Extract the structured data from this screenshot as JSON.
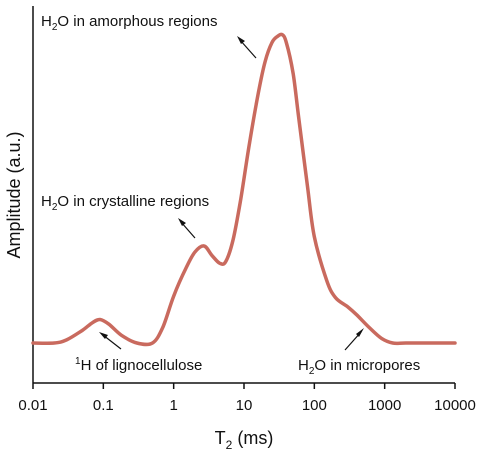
{
  "chart_data": {
    "type": "line",
    "title": "",
    "xlabel": "T2 (ms)",
    "xlabel_main": "T",
    "xlabel_sub": "2",
    "xlabel_tail": " (ms)",
    "ylabel": "Amplitude (a.u.)",
    "xscale": "log",
    "xlim": [
      0.01,
      10000
    ],
    "ylim": [
      0,
      1
    ],
    "grid": false,
    "legend": "none",
    "x_ticks": [
      0.01,
      0.1,
      1,
      10,
      100,
      1000,
      10000
    ],
    "x_tick_labels": [
      "0.01",
      "0.1",
      "1",
      "10",
      "100",
      "1000",
      "10000"
    ],
    "series": [
      {
        "color": "#c96a5e",
        "x": [
          0.01,
          0.02,
          0.03,
          0.05,
          0.07,
          0.09,
          0.12,
          0.18,
          0.3,
          0.5,
          0.7,
          1.0,
          1.5,
          2.0,
          2.7,
          3.5,
          4.5,
          5.5,
          7,
          9,
          12,
          16,
          20,
          25,
          30,
          35,
          40,
          50,
          60,
          80,
          100,
          150,
          200,
          300,
          400,
          600,
          900,
          1300,
          2000,
          5000,
          10000
        ],
        "y": [
          0.0,
          0.0,
          0.01,
          0.04,
          0.065,
          0.075,
          0.06,
          0.025,
          0.0,
          0.0,
          0.05,
          0.15,
          0.24,
          0.29,
          0.31,
          0.28,
          0.255,
          0.26,
          0.33,
          0.46,
          0.64,
          0.8,
          0.9,
          0.96,
          0.98,
          0.985,
          0.96,
          0.86,
          0.72,
          0.5,
          0.34,
          0.2,
          0.145,
          0.115,
          0.09,
          0.05,
          0.015,
          0.0,
          0.0,
          0.0,
          0.0
        ]
      }
    ],
    "annotations": [
      {
        "id": "amorphous",
        "text_main": "H",
        "text_sub": "2",
        "text_tail": "O in amorphous regions"
      },
      {
        "id": "crystalline",
        "text_main": "H",
        "text_sub": "2",
        "text_tail": "O in crystalline regions"
      },
      {
        "id": "lignocellulose",
        "text_sup": "1",
        "text_tail": "H of lignocellulose"
      },
      {
        "id": "micropores",
        "text_main": "H",
        "text_sub": "2",
        "text_tail": "O in micropores"
      }
    ]
  }
}
